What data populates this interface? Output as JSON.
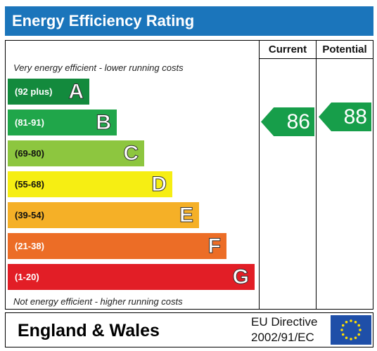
{
  "title": "Energy Efficiency Rating",
  "columns": {
    "current": "Current",
    "potential": "Potential"
  },
  "notes": {
    "top": "Very energy efficient - lower running costs",
    "bottom": "Not energy efficient - higher running costs"
  },
  "bands": [
    {
      "range": "(92 plus)",
      "letter": "A",
      "color": "#138a3d"
    },
    {
      "range": "(81-91)",
      "letter": "B",
      "color": "#20a64a"
    },
    {
      "range": "(69-80)",
      "letter": "C",
      "color": "#8dc63f"
    },
    {
      "range": "(55-68)",
      "letter": "D",
      "color": "#f6ee13"
    },
    {
      "range": "(39-54)",
      "letter": "E",
      "color": "#f5b027"
    },
    {
      "range": "(21-38)",
      "letter": "F",
      "color": "#ec6d26"
    },
    {
      "range": "(1-20)",
      "letter": "G",
      "color": "#e21e26"
    }
  ],
  "ratings": {
    "current": "86",
    "potential": "88",
    "arrow_color": "#179e4a"
  },
  "footer": {
    "region": "England & Wales",
    "directive_line1": "EU Directive",
    "directive_line2": "2002/91/EC",
    "flag_icon": "eu-flag-icon"
  }
}
